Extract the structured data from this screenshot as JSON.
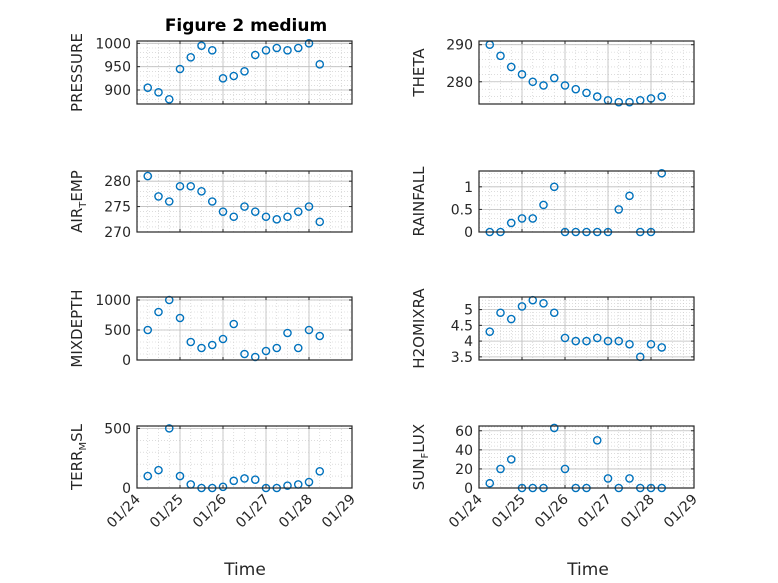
{
  "title": "Figure 2 medium",
  "xlabel": "Time",
  "x_tick_labels": [
    "01/24",
    "01/25",
    "01/26",
    "01/27",
    "01/28",
    "01/29"
  ],
  "colors": {
    "marker": "#0072BD",
    "axis": "#262626",
    "grid": "#c8c8c8"
  },
  "chart_data": [
    {
      "type": "scatter",
      "ylabel": "PRESSURE",
      "ylim": [
        870,
        1005
      ],
      "yticks": [
        900,
        950,
        1000
      ],
      "x": [
        "01/24 06:00",
        "01/24 12:00",
        "01/24 18:00",
        "01/25 00:00",
        "01/25 06:00",
        "01/25 12:00",
        "01/25 18:00",
        "01/26 00:00",
        "01/26 06:00",
        "01/26 12:00",
        "01/26 18:00",
        "01/27 00:00",
        "01/27 06:00",
        "01/27 12:00",
        "01/27 18:00",
        "01/28 00:00",
        "01/28 06:00"
      ],
      "y": [
        905,
        895,
        880,
        945,
        970,
        995,
        985,
        925,
        930,
        940,
        975,
        985,
        990,
        985,
        990,
        1000,
        955
      ]
    },
    {
      "type": "scatter",
      "ylabel": "THETA",
      "ylim": [
        274,
        291
      ],
      "yticks": [
        280,
        290
      ],
      "x": [
        "01/24 06:00",
        "01/24 12:00",
        "01/24 18:00",
        "01/25 00:00",
        "01/25 06:00",
        "01/25 12:00",
        "01/25 18:00",
        "01/26 00:00",
        "01/26 06:00",
        "01/26 12:00",
        "01/26 18:00",
        "01/27 00:00",
        "01/27 06:00",
        "01/27 12:00",
        "01/27 18:00",
        "01/28 00:00",
        "01/28 06:00"
      ],
      "y": [
        290,
        287,
        284,
        282,
        280,
        279,
        281,
        279,
        278,
        277,
        276,
        275,
        274.5,
        274.5,
        275,
        275.5,
        276
      ]
    },
    {
      "type": "scatter",
      "ylabel": "AIR_TEMP",
      "ylim": [
        270,
        282
      ],
      "yticks": [
        270,
        275,
        280
      ],
      "x": [
        "01/24 06:00",
        "01/24 12:00",
        "01/24 18:00",
        "01/25 00:00",
        "01/25 06:00",
        "01/25 12:00",
        "01/25 18:00",
        "01/26 00:00",
        "01/26 06:00",
        "01/26 12:00",
        "01/26 18:00",
        "01/27 00:00",
        "01/27 06:00",
        "01/27 12:00",
        "01/27 18:00",
        "01/28 00:00",
        "01/28 06:00"
      ],
      "y": [
        281,
        277,
        276,
        279,
        279,
        278,
        276,
        274,
        273,
        275,
        274,
        273,
        272.5,
        273,
        274,
        275,
        272
      ]
    },
    {
      "type": "scatter",
      "ylabel": "RAINFALL",
      "ylim": [
        0,
        1.35
      ],
      "yticks": [
        0,
        0.5,
        1
      ],
      "ytick_labels": [
        "0",
        "0.5",
        "1"
      ],
      "x": [
        "01/24 06:00",
        "01/24 12:00",
        "01/24 18:00",
        "01/25 00:00",
        "01/25 06:00",
        "01/25 12:00",
        "01/25 18:00",
        "01/26 00:00",
        "01/26 06:00",
        "01/26 12:00",
        "01/26 18:00",
        "01/27 00:00",
        "01/27 06:00",
        "01/27 12:00",
        "01/27 18:00",
        "01/28 00:00",
        "01/28 06:00"
      ],
      "y": [
        0,
        0,
        0.2,
        0.3,
        0.3,
        0.6,
        1.0,
        0,
        0,
        0,
        0,
        0,
        0.5,
        0.8,
        0,
        0,
        1.3
      ]
    },
    {
      "type": "scatter",
      "ylabel": "MIXDEPTH",
      "ylim": [
        0,
        1050
      ],
      "yticks": [
        0,
        500,
        1000
      ],
      "x": [
        "01/24 06:00",
        "01/24 12:00",
        "01/24 18:00",
        "01/25 00:00",
        "01/25 06:00",
        "01/25 12:00",
        "01/25 18:00",
        "01/26 00:00",
        "01/26 06:00",
        "01/26 12:00",
        "01/26 18:00",
        "01/27 00:00",
        "01/27 06:00",
        "01/27 12:00",
        "01/27 18:00",
        "01/28 00:00",
        "01/28 06:00"
      ],
      "y": [
        500,
        800,
        1000,
        700,
        300,
        200,
        250,
        350,
        600,
        100,
        50,
        150,
        200,
        450,
        200,
        500,
        400
      ]
    },
    {
      "type": "scatter",
      "ylabel": "H2OMIXRA",
      "ylim": [
        3.4,
        5.4
      ],
      "yticks": [
        3.5,
        4,
        4.5,
        5
      ],
      "ytick_labels": [
        "3.5",
        "4",
        "4.5",
        "5"
      ],
      "x": [
        "01/24 06:00",
        "01/24 12:00",
        "01/24 18:00",
        "01/25 00:00",
        "01/25 06:00",
        "01/25 12:00",
        "01/25 18:00",
        "01/26 00:00",
        "01/26 06:00",
        "01/26 12:00",
        "01/26 18:00",
        "01/27 00:00",
        "01/27 06:00",
        "01/27 12:00",
        "01/27 18:00",
        "01/28 00:00",
        "01/28 06:00"
      ],
      "y": [
        4.3,
        4.9,
        4.7,
        5.1,
        5.3,
        5.2,
        4.9,
        4.1,
        4.0,
        4.0,
        4.1,
        4.0,
        4.0,
        3.9,
        3.5,
        3.9,
        3.8
      ]
    },
    {
      "type": "scatter",
      "ylabel": "TERR_MSL",
      "ylim": [
        0,
        520
      ],
      "yticks": [
        0,
        500
      ],
      "x": [
        "01/24 06:00",
        "01/24 12:00",
        "01/24 18:00",
        "01/25 00:00",
        "01/25 06:00",
        "01/25 12:00",
        "01/25 18:00",
        "01/26 00:00",
        "01/26 06:00",
        "01/26 12:00",
        "01/26 18:00",
        "01/27 00:00",
        "01/27 06:00",
        "01/27 12:00",
        "01/27 18:00",
        "01/28 00:00",
        "01/28 06:00"
      ],
      "y": [
        100,
        150,
        500,
        100,
        30,
        0,
        0,
        10,
        60,
        80,
        70,
        0,
        0,
        20,
        30,
        50,
        140
      ]
    },
    {
      "type": "scatter",
      "ylabel": "SUN_FLUX",
      "ylim": [
        0,
        65
      ],
      "yticks": [
        0,
        20,
        40,
        60
      ],
      "x": [
        "01/24 06:00",
        "01/24 12:00",
        "01/24 18:00",
        "01/25 00:00",
        "01/25 06:00",
        "01/25 12:00",
        "01/25 18:00",
        "01/26 00:00",
        "01/26 06:00",
        "01/26 12:00",
        "01/26 18:00",
        "01/27 00:00",
        "01/27 06:00",
        "01/27 12:00",
        "01/27 18:00",
        "01/28 00:00",
        "01/28 06:00"
      ],
      "y": [
        5,
        20,
        30,
        0,
        0,
        0,
        63,
        20,
        0,
        0,
        50,
        10,
        0,
        10,
        0,
        0,
        0
      ]
    }
  ]
}
